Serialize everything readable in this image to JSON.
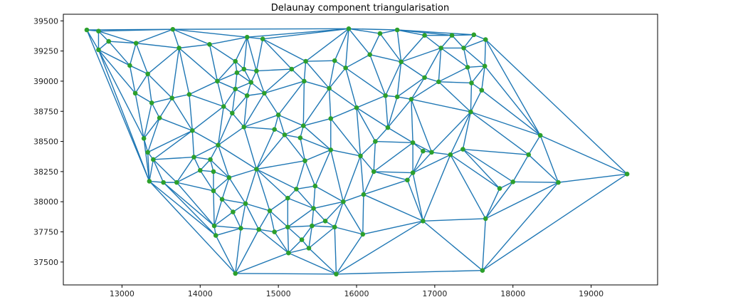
{
  "chart_data": {
    "type": "scatter",
    "title": "Delaunay component triangularisation",
    "xlabel": "",
    "ylabel": "",
    "xlim": [
      12250,
      19850
    ],
    "ylim": [
      37310,
      39555
    ],
    "xticks": [
      13000,
      14000,
      15000,
      16000,
      17000,
      18000,
      19000
    ],
    "yticks": [
      37500,
      37750,
      38000,
      38250,
      38500,
      38750,
      39000,
      39250,
      39500
    ],
    "edge_color": "#1f77b4",
    "point_color": "#2ca02c",
    "grid": false,
    "points": [
      [
        12550,
        39425
      ],
      [
        12700,
        39415
      ],
      [
        13650,
        39430
      ],
      [
        14600,
        39365
      ],
      [
        14800,
        39350
      ],
      [
        15900,
        39435
      ],
      [
        16300,
        39395
      ],
      [
        16520,
        39425
      ],
      [
        16870,
        39380
      ],
      [
        17220,
        39380
      ],
      [
        17500,
        39385
      ],
      [
        17650,
        39345
      ],
      [
        12700,
        39260
      ],
      [
        12830,
        39330
      ],
      [
        13180,
        39315
      ],
      [
        13730,
        39275
      ],
      [
        14120,
        39305
      ],
      [
        14450,
        39165
      ],
      [
        14560,
        39100
      ],
      [
        14470,
        39070
      ],
      [
        14720,
        39085
      ],
      [
        14650,
        38990
      ],
      [
        14220,
        39000
      ],
      [
        15170,
        39100
      ],
      [
        15350,
        39165
      ],
      [
        15720,
        39170
      ],
      [
        15860,
        39110
      ],
      [
        16170,
        39220
      ],
      [
        16570,
        39160
      ],
      [
        17080,
        39275
      ],
      [
        17370,
        39275
      ],
      [
        17420,
        39115
      ],
      [
        17640,
        39125
      ],
      [
        17050,
        38995
      ],
      [
        17470,
        38985
      ],
      [
        16870,
        39030
      ],
      [
        13100,
        39130
      ],
      [
        13330,
        39060
      ],
      [
        13170,
        38900
      ],
      [
        13380,
        38820
      ],
      [
        13640,
        38860
      ],
      [
        13860,
        38890
      ],
      [
        14450,
        38935
      ],
      [
        14600,
        38880
      ],
      [
        14820,
        38900
      ],
      [
        15330,
        39000
      ],
      [
        15650,
        38940
      ],
      [
        16000,
        38780
      ],
      [
        16370,
        38880
      ],
      [
        16520,
        38870
      ],
      [
        16700,
        38850
      ],
      [
        17600,
        38925
      ],
      [
        17460,
        38745
      ],
      [
        14300,
        38790
      ],
      [
        14410,
        38735
      ],
      [
        15000,
        38720
      ],
      [
        13480,
        38695
      ],
      [
        15670,
        38690
      ],
      [
        13280,
        38525
      ],
      [
        13900,
        38590
      ],
      [
        14560,
        38620
      ],
      [
        14950,
        38600
      ],
      [
        15080,
        38555
      ],
      [
        15280,
        38530
      ],
      [
        15320,
        38630
      ],
      [
        16400,
        38615
      ],
      [
        16240,
        38500
      ],
      [
        16720,
        38490
      ],
      [
        16850,
        38420
      ],
      [
        16960,
        38410
      ],
      [
        18350,
        38550
      ],
      [
        13330,
        38410
      ],
      [
        13400,
        38350
      ],
      [
        14230,
        38470
      ],
      [
        13920,
        38370
      ],
      [
        14130,
        38350
      ],
      [
        15670,
        38430
      ],
      [
        16050,
        38380
      ],
      [
        17200,
        38390
      ],
      [
        17360,
        38435
      ],
      [
        18200,
        38390
      ],
      [
        14000,
        38260
      ],
      [
        14170,
        38250
      ],
      [
        14720,
        38270
      ],
      [
        14370,
        38200
      ],
      [
        15340,
        38340
      ],
      [
        16220,
        38250
      ],
      [
        16720,
        38240
      ],
      [
        16650,
        38180
      ],
      [
        17830,
        38110
      ],
      [
        18000,
        38165
      ],
      [
        18580,
        38160
      ],
      [
        19460,
        38230
      ],
      [
        13350,
        38170
      ],
      [
        13530,
        38160
      ],
      [
        13700,
        38160
      ],
      [
        14170,
        38090
      ],
      [
        14280,
        38020
      ],
      [
        14580,
        37985
      ],
      [
        14420,
        37915
      ],
      [
        15120,
        38030
      ],
      [
        15230,
        38105
      ],
      [
        15470,
        38130
      ],
      [
        15830,
        38000
      ],
      [
        16090,
        38060
      ],
      [
        14890,
        37925
      ],
      [
        15450,
        37945
      ],
      [
        14180,
        37800
      ],
      [
        14200,
        37720
      ],
      [
        14520,
        37780
      ],
      [
        14750,
        37770
      ],
      [
        14950,
        37750
      ],
      [
        15120,
        37790
      ],
      [
        15430,
        37800
      ],
      [
        15600,
        37840
      ],
      [
        15720,
        37790
      ],
      [
        16080,
        37730
      ],
      [
        16850,
        37840
      ],
      [
        17650,
        37860
      ],
      [
        15300,
        37685
      ],
      [
        15130,
        37575
      ],
      [
        15390,
        37615
      ],
      [
        14450,
        37405
      ],
      [
        15740,
        37400
      ],
      [
        17610,
        37430
      ]
    ]
  }
}
